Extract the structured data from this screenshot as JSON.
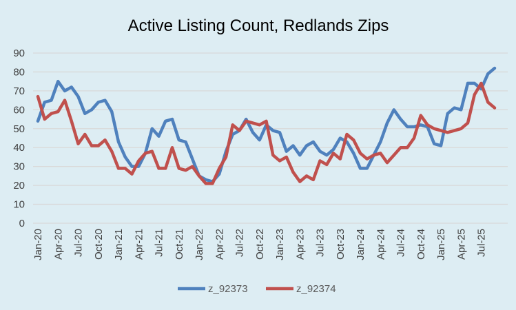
{
  "chart_data": {
    "type": "line",
    "title": "Active Listing Count, Redlands Zips",
    "xlabel": "",
    "ylabel": "",
    "ylim": [
      0,
      90
    ],
    "yticks": [
      0,
      10,
      20,
      30,
      40,
      50,
      60,
      70,
      80,
      90
    ],
    "grid": true,
    "legend_position": "bottom",
    "x_tick_labels": [
      "Jan-20",
      "Apr-20",
      "Jul-20",
      "Oct-20",
      "Jan-21",
      "Apr-21",
      "Jul-21",
      "Oct-21",
      "Jan-22",
      "Apr-22",
      "Jul-22",
      "Oct-22",
      "Jan-23",
      "Apr-23",
      "Jul-23",
      "Oct-23",
      "Jan-24",
      "Apr-24",
      "Jul-24",
      "Oct-24",
      "Jan-25",
      "Apr-25",
      "Jul-25"
    ],
    "series": [
      {
        "name": "z_92373",
        "color": "#4f81bd",
        "values": [
          54,
          64,
          65,
          75,
          70,
          72,
          67,
          58,
          60,
          64,
          65,
          59,
          43,
          35,
          30,
          30,
          37,
          50,
          46,
          54,
          55,
          44,
          43,
          34,
          25,
          23,
          22,
          26,
          38,
          47,
          49,
          55,
          48,
          44,
          52,
          49,
          48,
          38,
          41,
          36,
          41,
          43,
          38,
          36,
          39,
          45,
          43,
          37,
          29,
          29,
          36,
          43,
          53,
          60,
          55,
          51,
          51,
          52,
          51,
          42,
          41,
          58,
          61,
          60,
          74,
          74,
          71,
          79,
          82
        ]
      },
      {
        "name": "z_92374",
        "color": "#c0504d",
        "values": [
          67,
          55,
          58,
          59,
          65,
          54,
          42,
          47,
          41,
          41,
          44,
          38,
          29,
          29,
          26,
          33,
          37,
          38,
          29,
          29,
          40,
          29,
          28,
          30,
          25,
          21,
          21,
          29,
          35,
          52,
          49,
          54,
          53,
          52,
          54,
          36,
          33,
          35,
          27,
          22,
          25,
          23,
          33,
          31,
          37,
          34,
          47,
          44,
          37,
          34,
          36,
          37,
          32,
          36,
          40,
          40,
          45,
          57,
          52,
          50,
          49,
          48,
          49,
          50,
          53,
          68,
          74,
          64,
          61
        ]
      }
    ]
  }
}
